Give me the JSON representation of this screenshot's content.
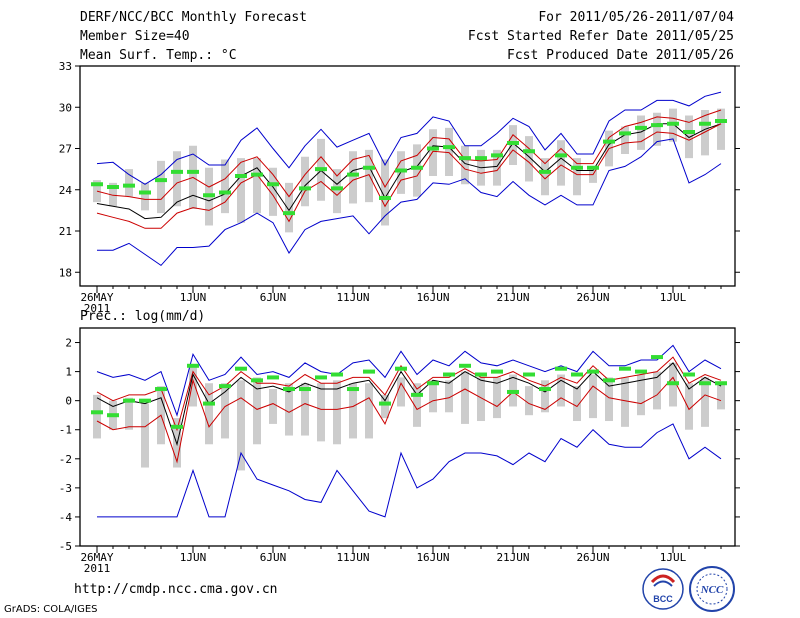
{
  "header": {
    "title": "DERF/NCC/BCC Monthly Forecast",
    "member_size": "Member Size=40",
    "variable": "Mean Surf. Temp.: °C",
    "forecast_range": "For 2011/05/26-2011/07/04",
    "start_date": "Fcst Started Refer Date 2011/05/25",
    "produced_date": "Fcst Produced Date 2011/05/26"
  },
  "footer": {
    "url": "http://cmdp.ncc.cma.gov.cn",
    "credit": "GrADS: COLA/IGES",
    "logo_bcc": "BCC",
    "logo_ncc": "NCC"
  },
  "colors": {
    "range": "#0000cc",
    "sd": "#cc0000",
    "mean": "#000000",
    "box": "#cccccc",
    "obs": "#33dd33"
  },
  "chart_data": [
    {
      "type": "line",
      "title": "Mean Surf. Temp.: °C",
      "ylim": [
        17,
        33
      ],
      "yticks": [
        18,
        21,
        24,
        27,
        30,
        33
      ],
      "x_tick_labels": [
        {
          "day": 1,
          "label": "26MAY"
        },
        {
          "day": 7,
          "label": "1JUN"
        },
        {
          "day": 12,
          "label": "6JUN"
        },
        {
          "day": 17,
          "label": "11JUN"
        },
        {
          "day": 22,
          "label": "16JUN"
        },
        {
          "day": 27,
          "label": "21JUN"
        },
        {
          "day": 32,
          "label": "26JUN"
        },
        {
          "day": 37,
          "label": "1JUL"
        }
      ],
      "year_label": "2011",
      "days": [
        1,
        2,
        3,
        4,
        5,
        6,
        7,
        8,
        9,
        10,
        11,
        12,
        13,
        14,
        15,
        16,
        17,
        18,
        19,
        20,
        21,
        22,
        23,
        24,
        25,
        26,
        27,
        28,
        29,
        30,
        31,
        32,
        33,
        34,
        35,
        36,
        37,
        38,
        39,
        40
      ],
      "series": [
        {
          "name": "max",
          "values": [
            25.9,
            26,
            25.1,
            24.4,
            25.1,
            26.2,
            26.6,
            25.8,
            25.8,
            27.6,
            28.5,
            27,
            25.6,
            27.2,
            28.4,
            27.1,
            27.6,
            28.1,
            25.8,
            27.8,
            28.1,
            29.3,
            29,
            27.2,
            27.2,
            28.1,
            29.2,
            28.6,
            26.9,
            28.1,
            26.6,
            26.6,
            29,
            29.8,
            29.8,
            30.5,
            30.5,
            30.1,
            30.8,
            31.1
          ]
        },
        {
          "name": "mean_plus_sd",
          "values": [
            23.9,
            23.6,
            23.5,
            23.3,
            23.3,
            24.5,
            24.9,
            24.2,
            24.8,
            26,
            26.4,
            25.1,
            23.5,
            25.1,
            26.4,
            25,
            26.2,
            26.5,
            24.2,
            26.1,
            26.5,
            27.8,
            27.7,
            26.2,
            26.1,
            26.2,
            28,
            27,
            25.9,
            27,
            25.9,
            25.9,
            27.8,
            28.6,
            28.9,
            29.3,
            29.2,
            28.9,
            29.4,
            29.8
          ]
        },
        {
          "name": "ensemble_mean",
          "values": [
            23,
            22.8,
            22.6,
            21.9,
            22,
            23.1,
            23.6,
            23.2,
            23.7,
            25,
            25.6,
            24.2,
            22.5,
            24.3,
            25.4,
            24.4,
            25.4,
            25.7,
            23.4,
            25.3,
            25.7,
            27.2,
            27.1,
            25.9,
            25.6,
            25.7,
            27.4,
            26.4,
            25.3,
            26.3,
            25.4,
            25.4,
            27.3,
            28,
            28.2,
            28.8,
            28.8,
            27.8,
            28.4,
            28.8
          ]
        },
        {
          "name": "mean_minus_sd",
          "values": [
            22.3,
            22,
            21.7,
            21.2,
            21.2,
            22.3,
            22.7,
            22.5,
            23.1,
            24.5,
            25.1,
            23.6,
            21.7,
            23.9,
            24.6,
            23.6,
            24.7,
            25.1,
            22.8,
            24.7,
            25,
            26.8,
            26.7,
            25.5,
            25.2,
            25.4,
            26.9,
            26,
            24.8,
            25.8,
            25.1,
            25.1,
            27,
            27.4,
            27.5,
            28.2,
            28.1,
            27.6,
            28.2,
            28.8
          ]
        },
        {
          "name": "min",
          "values": [
            19.6,
            19.6,
            20.1,
            19.3,
            18.5,
            19.8,
            19.8,
            19.9,
            21.1,
            21.6,
            22.3,
            21.6,
            19.4,
            21.1,
            21.7,
            21.9,
            22.1,
            20.8,
            22.1,
            23.1,
            23.3,
            24.5,
            24.4,
            24.8,
            23.8,
            23.5,
            24.6,
            23.6,
            22.9,
            23.6,
            22.9,
            22.9,
            25.4,
            25.7,
            26.4,
            27.5,
            27.7,
            24.5,
            25.1,
            25.9
          ]
        }
      ],
      "box_top": [
        24.7,
        24.5,
        25.5,
        24.5,
        26.1,
        26.8,
        27.2,
        25.6,
        26.2,
        26.3,
        26.3,
        25.6,
        24.5,
        26.4,
        27.7,
        25.5,
        26.8,
        26.9,
        26.2,
        26.8,
        27.3,
        28.4,
        28.5,
        27.2,
        26.9,
        26.9,
        28.7,
        27.9,
        26.3,
        27.6,
        26.3,
        25.6,
        28.3,
        28.6,
        29.4,
        29.6,
        29.9,
        29.4,
        29.8,
        29.9
      ],
      "box_bottom": [
        23.1,
        22.8,
        23.5,
        22.5,
        22.3,
        22.8,
        22.6,
        21.4,
        22.3,
        21.6,
        22.3,
        22.1,
        20.9,
        22.8,
        23.2,
        22.3,
        23,
        23.1,
        21.4,
        23.7,
        23.5,
        25,
        25,
        24.4,
        24.3,
        24.3,
        25.8,
        24.6,
        23.6,
        24.3,
        23.6,
        24.5,
        25.7,
        26.6,
        26.9,
        27.2,
        27.5,
        26.3,
        26.5,
        26.9
      ],
      "observed": [
        24.4,
        24.2,
        24.3,
        23.8,
        24.7,
        25.3,
        25.3,
        23.6,
        23.8,
        25,
        25.1,
        24.4,
        22.3,
        24.1,
        25.5,
        24.1,
        25.1,
        25.6,
        23.4,
        25.4,
        25.6,
        27,
        27.1,
        26.3,
        26.3,
        26.5,
        27.4,
        26.8,
        25.3,
        26.5,
        25.6,
        25.6,
        27.5,
        28.1,
        28.5,
        28.7,
        28.8,
        28.2,
        28.8,
        29
      ]
    },
    {
      "type": "line",
      "title": "Prec.: log(mm/d)",
      "ylim": [
        -5,
        2.5
      ],
      "yticks": [
        -5,
        -4,
        -3,
        -2,
        -1,
        0,
        1,
        2
      ],
      "x_tick_labels": [
        {
          "day": 1,
          "label": "26MAY"
        },
        {
          "day": 7,
          "label": "1JUN"
        },
        {
          "day": 12,
          "label": "6JUN"
        },
        {
          "day": 17,
          "label": "11JUN"
        },
        {
          "day": 22,
          "label": "16JUN"
        },
        {
          "day": 27,
          "label": "21JUN"
        },
        {
          "day": 32,
          "label": "26JUN"
        },
        {
          "day": 37,
          "label": "1JUL"
        }
      ],
      "year_label": "2011",
      "days": [
        1,
        2,
        3,
        4,
        5,
        6,
        7,
        8,
        9,
        10,
        11,
        12,
        13,
        14,
        15,
        16,
        17,
        18,
        19,
        20,
        21,
        22,
        23,
        24,
        25,
        26,
        27,
        28,
        29,
        30,
        31,
        32,
        33,
        34,
        35,
        36,
        37,
        38,
        39,
        40
      ],
      "series": [
        {
          "name": "max",
          "values": [
            1,
            0.8,
            0.9,
            0.7,
            1,
            -0.5,
            1.6,
            0.7,
            0.9,
            1.5,
            0.9,
            1,
            0.8,
            1.3,
            1,
            0.9,
            1.3,
            1.4,
            0.8,
            1.7,
            0.9,
            1.4,
            1.2,
            1.7,
            1.3,
            1.2,
            1.4,
            1.2,
            1,
            1.2,
            1,
            1.7,
            1.2,
            1.2,
            1.4,
            1.4,
            1.9,
            1,
            1.4,
            1.1
          ]
        },
        {
          "name": "mean_plus_sd",
          "values": [
            0.3,
            0,
            0.2,
            0.2,
            0.4,
            -1,
            1,
            0.2,
            0.5,
            1,
            0.6,
            0.6,
            0.5,
            0.9,
            0.6,
            0.6,
            0.8,
            0.8,
            0.2,
            1.2,
            0.4,
            0.8,
            0.8,
            1.1,
            0.8,
            0.8,
            1,
            0.7,
            0.5,
            0.8,
            0.6,
            1.2,
            0.7,
            0.8,
            0.9,
            1,
            1.5,
            0.6,
            0.9,
            0.7
          ]
        },
        {
          "name": "ensemble_mean",
          "values": [
            0.1,
            -0.2,
            0,
            -0.1,
            0.1,
            -1.5,
            0.9,
            -0.1,
            0.3,
            0.8,
            0.4,
            0.5,
            0.3,
            0.6,
            0.4,
            0.4,
            0.6,
            0.7,
            0,
            1,
            0.2,
            0.7,
            0.6,
            1,
            0.7,
            0.6,
            0.8,
            0.6,
            0.3,
            0.7,
            0.4,
            1,
            0.5,
            0.6,
            0.7,
            0.8,
            1.3,
            0.4,
            0.8,
            0.5
          ]
        },
        {
          "name": "mean_minus_sd",
          "values": [
            -0.7,
            -1,
            -0.9,
            -0.9,
            -0.5,
            -2.1,
            0.7,
            -0.9,
            -0.2,
            0.1,
            -0.3,
            -0.1,
            -0.4,
            -0.1,
            -0.3,
            -0.3,
            -0.2,
            0.1,
            -0.8,
            0.6,
            -0.3,
            0,
            0.1,
            0.4,
            0.1,
            -0.2,
            0.3,
            -0.1,
            -0.3,
            0.1,
            -0.2,
            0.5,
            0.1,
            0,
            -0.1,
            0.2,
            0.8,
            -0.3,
            0.2,
            0
          ]
        },
        {
          "name": "min",
          "values": [
            -4,
            -4,
            -4,
            -4,
            -4,
            -4,
            -2.4,
            -4,
            -4,
            -1.8,
            -2.7,
            -2.9,
            -3.1,
            -3.4,
            -3.5,
            -2.4,
            -3.1,
            -3.8,
            -4,
            -1.8,
            -3,
            -2.7,
            -2.1,
            -1.8,
            -1.8,
            -1.9,
            -2.2,
            -1.8,
            -2.1,
            -1.3,
            -1.6,
            -1,
            -1.5,
            -1.6,
            -1.6,
            -1.1,
            -0.8,
            -2,
            -1.6,
            -2
          ]
        }
      ],
      "box_top": [
        0.2,
        0,
        0.1,
        -0.1,
        0.5,
        -0.6,
        1.2,
        0.6,
        0.6,
        0.7,
        0.8,
        0.4,
        0.6,
        0.6,
        0.6,
        0.7,
        0.6,
        0.6,
        0.2,
        0.8,
        0.6,
        0.7,
        0.7,
        1,
        0.8,
        0.8,
        0.9,
        0.5,
        0.7,
        0.9,
        0.5,
        0.9,
        0.8,
        0.8,
        0.9,
        1,
        1.3,
        0.6,
        0.8,
        0.6
      ],
      "box_bottom": [
        -1.3,
        -1,
        -1,
        -2.3,
        -1.5,
        -2.3,
        -0.2,
        -1.5,
        -1.3,
        -2.4,
        -1.5,
        -0.8,
        -1.2,
        -1.2,
        -1.4,
        -1.5,
        -1.3,
        -1.3,
        -0.6,
        -0.2,
        -0.9,
        -0.4,
        -0.4,
        -0.8,
        -0.7,
        -0.6,
        -0.2,
        -0.5,
        -0.4,
        -0.2,
        -0.7,
        -0.6,
        -0.7,
        -0.9,
        -0.5,
        -0.3,
        -0.2,
        -1,
        -0.9,
        -0.3
      ],
      "observed": [
        -0.4,
        -0.5,
        0,
        0,
        0.4,
        -0.9,
        1.2,
        -0.1,
        0.5,
        1.1,
        0.7,
        0.8,
        0.4,
        0.4,
        0.8,
        0.9,
        0.4,
        1,
        -0.1,
        1.1,
        0.2,
        0.6,
        0.9,
        1.2,
        0.9,
        1,
        0.3,
        0.9,
        0.4,
        1.1,
        0.9,
        1,
        0.7,
        1.1,
        1,
        1.5,
        0.6,
        0.9,
        0.6,
        0.6
      ]
    }
  ]
}
